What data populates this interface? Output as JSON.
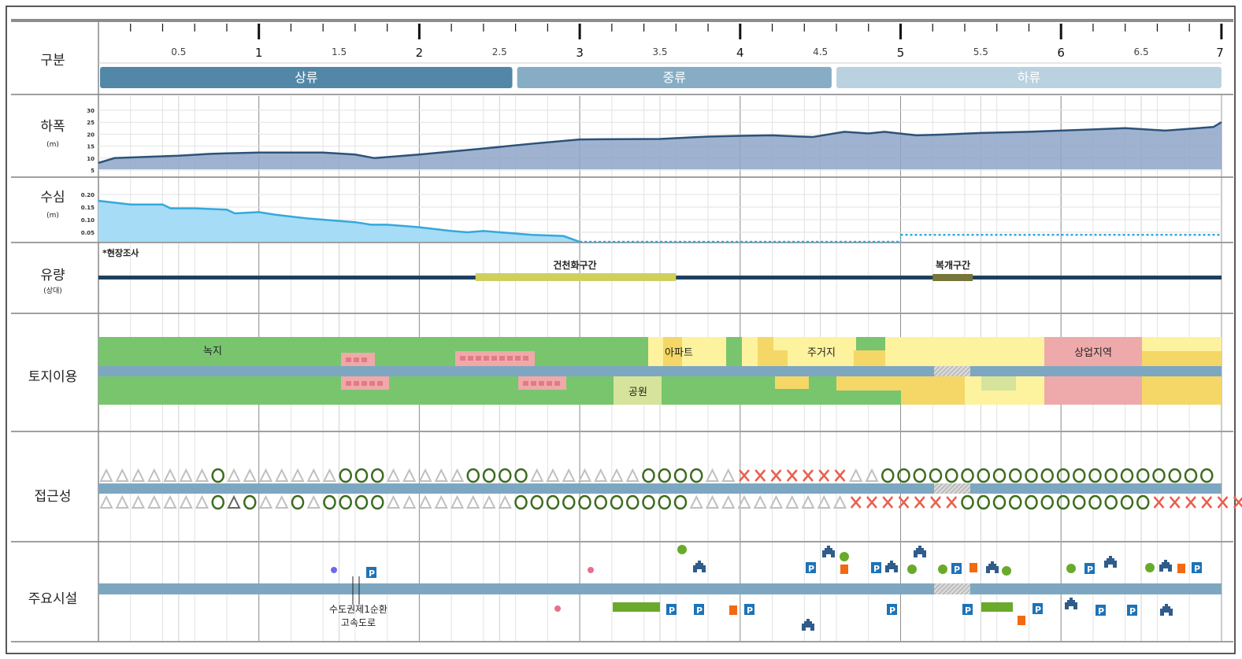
{
  "row_labels": {
    "section": "구분",
    "width": "하폭",
    "width_unit": "(m)",
    "depth": "수심",
    "depth_unit": "(m)",
    "flow": "유량",
    "flow_unit": "(상대)",
    "landuse": "토지이용",
    "access": "접근성",
    "facilities": "주요시설"
  },
  "ruler": {
    "labels": [
      "0.5",
      "1",
      "1.5",
      "2",
      "2.5",
      "3",
      "3.5",
      "4",
      "4.5",
      "5",
      "5.5",
      "6",
      "6.5",
      "7"
    ],
    "values": [
      0.5,
      1,
      1.5,
      2,
      2.5,
      3,
      3.5,
      4,
      4.5,
      5,
      5.5,
      6,
      6.5,
      7
    ]
  },
  "segments": [
    {
      "label": "상류",
      "from": 0.01,
      "to": 2.58,
      "color": "#5287a8"
    },
    {
      "label": "중류",
      "from": 2.61,
      "to": 4.57,
      "color": "#86adc4"
    },
    {
      "label": "하류",
      "from": 4.6,
      "to": 7.0,
      "color": "#bad1df"
    }
  ],
  "flow": {
    "note": "*현장조사",
    "dry_label": "건천화구간",
    "dry_range": [
      2.35,
      3.6
    ],
    "covered_label": "복개구간",
    "covered_range": [
      5.2,
      5.45
    ]
  },
  "landuse_labels": {
    "green": "녹지",
    "apartment": "아파트",
    "residential": "주거지",
    "commercial": "상업지역",
    "park": "공원"
  },
  "highway_label": [
    "수도권제1순환",
    "고속도로"
  ],
  "chart_data": {
    "type": "area",
    "x_unit": "km",
    "xlim": [
      0,
      7
    ],
    "width": {
      "title": "하폭",
      "ylabel": "(m)",
      "ylim": [
        5,
        30
      ],
      "yticks": [
        5,
        10,
        15,
        20,
        25,
        30
      ],
      "x": [
        0,
        0.1,
        0.3,
        0.5,
        0.7,
        0.8,
        1,
        1.4,
        1.6,
        1.72,
        2,
        2.4,
        2.7,
        3,
        3.5,
        3.8,
        4,
        4.2,
        4.45,
        4.65,
        4.8,
        4.9,
        5.1,
        5.25,
        5.5,
        5.8,
        6,
        6.4,
        6.65,
        6.95,
        7
      ],
      "y": [
        8,
        10,
        10.5,
        11,
        11.8,
        12,
        12.3,
        12.3,
        11.5,
        10,
        11.5,
        14,
        16,
        17.8,
        18,
        19,
        19.3,
        19.5,
        18.8,
        21,
        20.3,
        21,
        19.5,
        19.8,
        20.5,
        21,
        21.5,
        22.5,
        21.5,
        23,
        25
      ]
    },
    "depth": {
      "title": "수심",
      "ylabel": "(m)",
      "ylim": [
        0,
        0.2
      ],
      "yticks": [
        0.05,
        0.1,
        0.15,
        0.2
      ],
      "yticklabels": [
        "0.05",
        "0.10",
        "0.15",
        "0.20"
      ],
      "x": [
        0,
        0.2,
        0.4,
        0.45,
        0.6,
        0.8,
        0.85,
        1,
        1.1,
        1.3,
        1.6,
        1.7,
        1.8,
        2,
        2.2,
        2.3,
        2.4,
        2.7,
        2.9,
        3
      ],
      "y": [
        0.175,
        0.16,
        0.16,
        0.145,
        0.145,
        0.14,
        0.125,
        0.13,
        0.12,
        0.105,
        0.09,
        0.08,
        0.08,
        0.07,
        0.055,
        0.05,
        0.055,
        0.04,
        0.035,
        0.012
      ],
      "dotted": [
        {
          "from": 3,
          "to": 5,
          "y": 0.012
        },
        {
          "from": 5,
          "to": 7,
          "y": 0.04
        }
      ]
    },
    "accessibility": {
      "legend": {
        "good": "○",
        "fair": "△",
        "poor": "×"
      },
      "left_bank": "△△△△△△△○△△△△△△△○○○△△△△△○○○○△△△△△△△○○○○△△×××××××△△○○○○○○○○○○○○○○○○○○○○○",
      "right_bank": "△△△△△△△○▲○△△○△○○○○△△△△△△△△○○○○○○○○○○○△△△△△△△△△△×××××××○○○○○○○○○○○○××××××"
    }
  },
  "colors": {
    "river": "#7da7c1",
    "green": "#78c56e",
    "light_yellow": "#fdf29e",
    "yellow": "#f4d766",
    "pink": "#eeaaaa",
    "park": "#d5e49a",
    "width_fill": "#8ea6c8",
    "width_line": "#2d527a",
    "depth_fill": "#a6dcf5",
    "depth_line": "#35a8dc",
    "circle": "#3d6b20",
    "triangle": "#c0c0c0",
    "cross": "#e8604c",
    "parking": "#1d73b8",
    "orange": "#f26a10",
    "green_dot": "#6aaa2a"
  }
}
